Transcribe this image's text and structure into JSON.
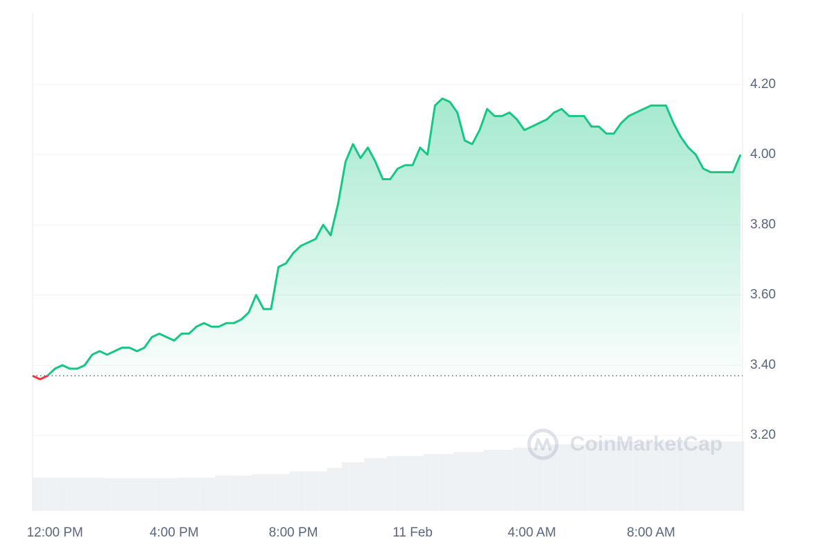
{
  "chart_data": {
    "type": "area",
    "categories": [
      null,
      null,
      null,
      "12:00 PM",
      null,
      null,
      null,
      null,
      null,
      null,
      null,
      null,
      null,
      null,
      null,
      null,
      null,
      null,
      null,
      "4:00 PM",
      null,
      null,
      null,
      null,
      null,
      null,
      null,
      null,
      null,
      null,
      null,
      null,
      null,
      null,
      null,
      "8:00 PM",
      null,
      null,
      null,
      null,
      null,
      null,
      null,
      null,
      null,
      null,
      null,
      null,
      null,
      null,
      null,
      "11 Feb",
      null,
      null,
      null,
      null,
      null,
      null,
      null,
      null,
      null,
      null,
      null,
      null,
      null,
      null,
      null,
      "4:00 AM",
      null,
      null,
      null,
      null,
      null,
      null,
      null,
      null,
      null,
      null,
      null,
      null,
      null,
      null,
      null,
      "8:00 AM",
      null,
      null,
      null,
      null,
      null,
      null,
      null,
      null,
      null,
      null,
      null,
      null
    ],
    "series": [
      {
        "color": "#16c784",
        "below_color": "#ea3943",
        "values": [
          3.37,
          3.36,
          3.37,
          3.39,
          3.4,
          3.39,
          3.39,
          3.4,
          3.43,
          3.44,
          3.43,
          3.44,
          3.45,
          3.45,
          3.44,
          3.45,
          3.48,
          3.49,
          3.48,
          3.47,
          3.49,
          3.49,
          3.51,
          3.52,
          3.51,
          3.51,
          3.52,
          3.52,
          3.53,
          3.55,
          3.6,
          3.56,
          3.56,
          3.68,
          3.69,
          3.72,
          3.74,
          3.75,
          3.76,
          3.8,
          3.77,
          3.86,
          3.98,
          4.03,
          3.99,
          4.02,
          3.98,
          3.93,
          3.93,
          3.96,
          3.97,
          3.97,
          4.02,
          4.0,
          4.14,
          4.16,
          4.15,
          4.12,
          4.04,
          4.03,
          4.07,
          4.13,
          4.11,
          4.11,
          4.12,
          4.1,
          4.07,
          4.08,
          4.09,
          4.1,
          4.12,
          4.13,
          4.11,
          4.11,
          4.11,
          4.08,
          4.08,
          4.06,
          4.06,
          4.09,
          4.11,
          4.12,
          4.13,
          4.14,
          4.14,
          4.14,
          4.09,
          4.05,
          4.02,
          4.0,
          3.96,
          3.95,
          3.95,
          3.95,
          3.95,
          4.0
        ]
      }
    ],
    "baseline": 3.37,
    "volume": {
      "color": "#eff2f5",
      "values": [
        48,
        48,
        48,
        48,
        48,
        48,
        48,
        48,
        48,
        48,
        47,
        47,
        47,
        47,
        47,
        47,
        47,
        47,
        47,
        47,
        48,
        48,
        48,
        48,
        48,
        51,
        51,
        51,
        51,
        51,
        53,
        53,
        53,
        53,
        53,
        57,
        57,
        57,
        57,
        57,
        62,
        62,
        70,
        70,
        70,
        76,
        76,
        76,
        79,
        79,
        79,
        79,
        79,
        82,
        82,
        82,
        82,
        85,
        85,
        85,
        85,
        88,
        88,
        88,
        88,
        91,
        91,
        91,
        91,
        91,
        96,
        96,
        96,
        96,
        96,
        100,
        100,
        100,
        100,
        100,
        100,
        100,
        100,
        100,
        100,
        100,
        100,
        100,
        100,
        100,
        100,
        100,
        100,
        100,
        100,
        100
      ]
    },
    "ylim": [
      2.985,
      4.405
    ],
    "yticks": [
      {
        "value": 3.2,
        "label": "3.20"
      },
      {
        "value": 3.4,
        "label": "3.40"
      },
      {
        "value": 3.6,
        "label": "3.60"
      },
      {
        "value": 3.8,
        "label": "3.80"
      },
      {
        "value": 4.0,
        "label": "4.00"
      },
      {
        "value": 4.2,
        "label": "4.20"
      }
    ],
    "grid": true,
    "watermark": "CoinMarketCap"
  }
}
